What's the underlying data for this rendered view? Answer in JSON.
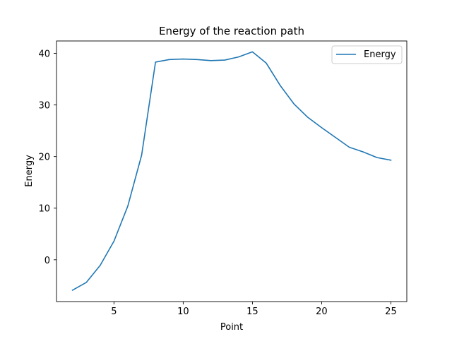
{
  "chart_data": {
    "type": "line",
    "title": "Energy of the reaction path",
    "xlabel": "Point",
    "ylabel": "Energy",
    "xlim": [
      0.85,
      26.15
    ],
    "ylim": [
      -8.1,
      42.4
    ],
    "x_ticks": [
      5,
      10,
      15,
      20,
      25
    ],
    "y_ticks": [
      0,
      10,
      20,
      30,
      40
    ],
    "grid": false,
    "legend_position": "top-right",
    "series": [
      {
        "name": "Energy",
        "color": "#1f77b4",
        "x": [
          2,
          3,
          4,
          5,
          6,
          7,
          8,
          9,
          10,
          11,
          12,
          13,
          14,
          15,
          16,
          17,
          18,
          19,
          20,
          21,
          22,
          23,
          24,
          25
        ],
        "values": [
          -5.9,
          -4.4,
          -1.1,
          3.6,
          10.4,
          20.3,
          38.3,
          38.8,
          38.9,
          38.8,
          38.6,
          38.7,
          39.3,
          40.3,
          38.1,
          33.8,
          30.2,
          27.6,
          25.6,
          23.7,
          21.8,
          20.9,
          19.8,
          19.3
        ]
      }
    ]
  }
}
